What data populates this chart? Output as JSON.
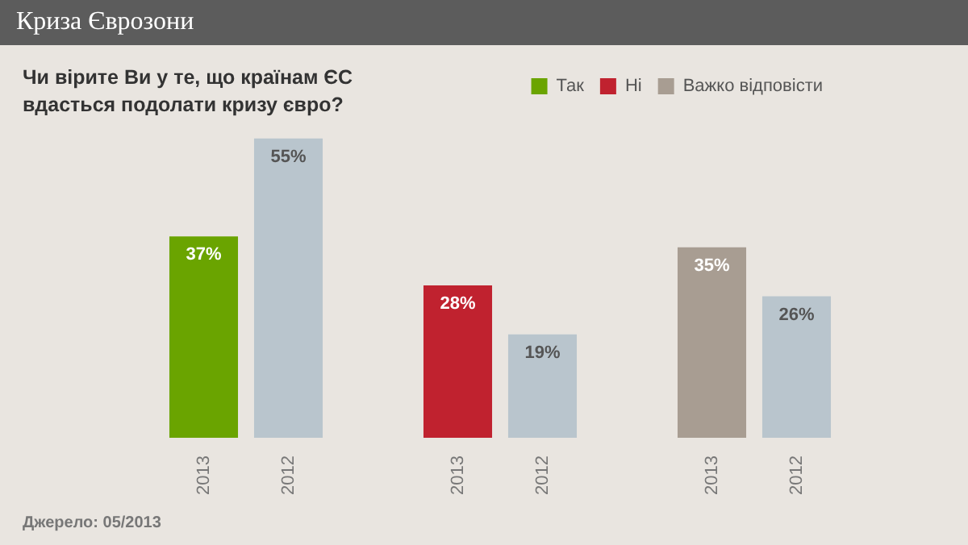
{
  "chart_data": {
    "type": "bar",
    "title": "Криза Єврозони",
    "subtitle": "Чи вірите Ви у те, що країнам ЄС вдасться подолати кризу євро?",
    "categories": [
      "2013",
      "2012",
      null,
      "2013",
      "2012",
      null,
      "2013",
      "2012"
    ],
    "series": [
      {
        "name": "Так",
        "color": "#6aa400",
        "values": [
          37,
          null,
          null,
          null,
          null,
          null,
          null,
          null
        ],
        "value_labels": [
          "37%",
          null,
          null,
          null,
          null,
          null,
          null,
          null
        ]
      },
      {
        "name": "Ні",
        "color": "#c0222f",
        "values": [
          null,
          null,
          null,
          28,
          null,
          null,
          null,
          null
        ],
        "value_labels": [
          null,
          null,
          null,
          "28%",
          null,
          null,
          null,
          null
        ]
      },
      {
        "name": "Важко відповісти",
        "color": "#a89d92",
        "values": [
          null,
          null,
          null,
          null,
          null,
          null,
          35,
          null
        ],
        "value_labels": [
          null,
          null,
          null,
          null,
          null,
          null,
          "35%",
          null
        ]
      },
      {
        "color": "#b9c5cd",
        "values": [
          null,
          55,
          null,
          null,
          19,
          null,
          null,
          26
        ],
        "value_labels": [
          null,
          "55%",
          null,
          null,
          "19%",
          null,
          null,
          "26%"
        ]
      }
    ],
    "legend": "top right",
    "grid": false,
    "tick_labels": "x",
    "annotations": [
      "Джерело: 05/2013"
    ]
  }
}
